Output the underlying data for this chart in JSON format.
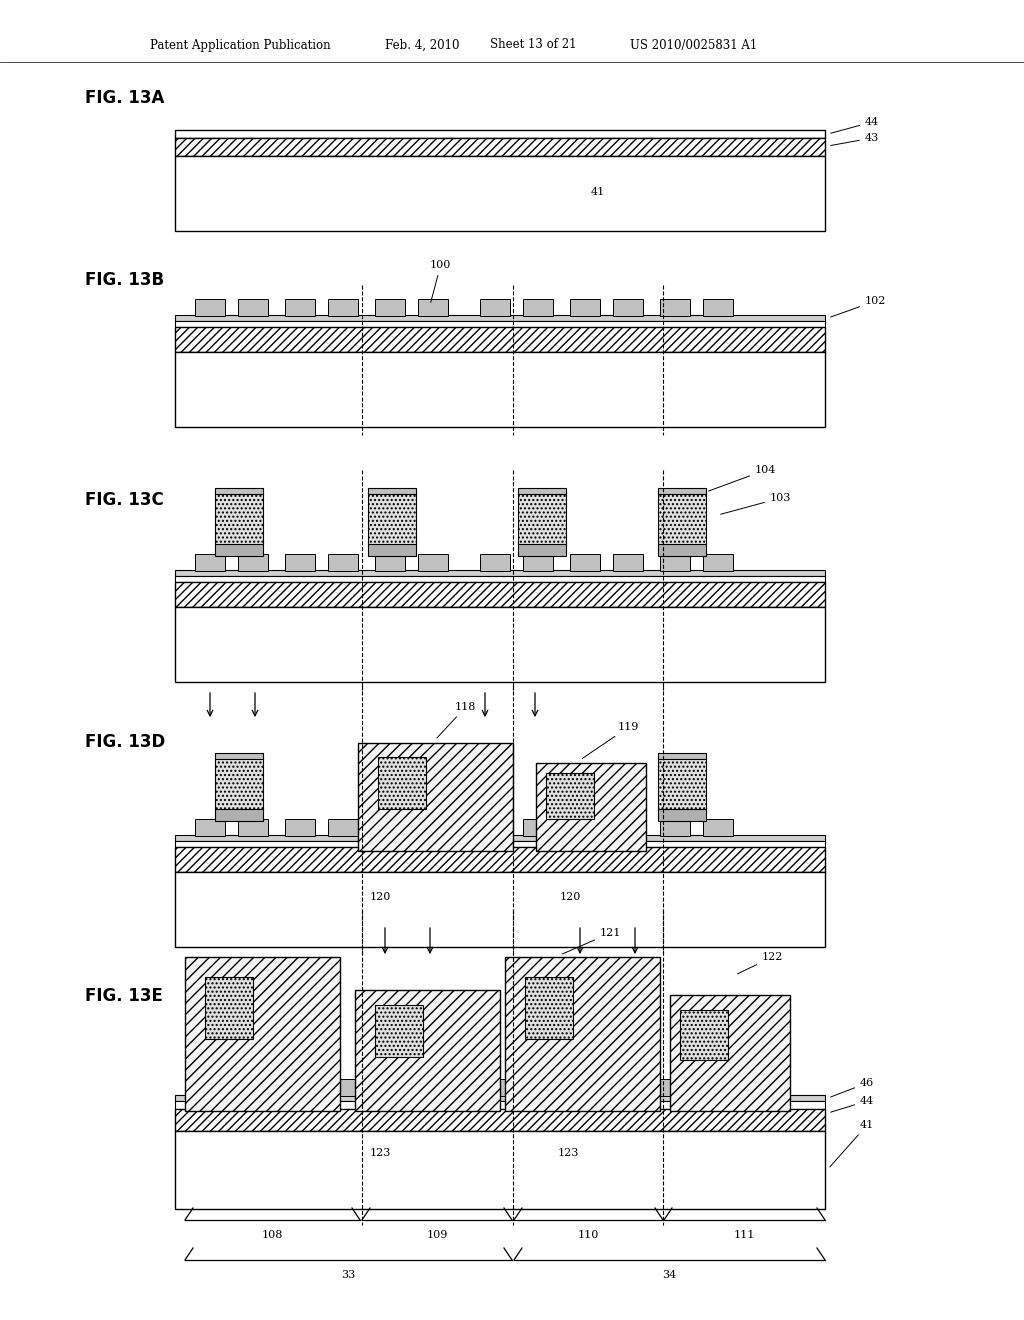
{
  "bg_color": "#ffffff",
  "header_text1": "Patent Application Publication",
  "header_text2": "Feb. 4, 2010",
  "header_text3": "Sheet 13 of 21",
  "header_text4": "US 2010/0025831 A1",
  "figures": [
    "FIG. 13A",
    "FIG. 13B",
    "FIG. 13C",
    "FIG. 13D",
    "FIG. 13E"
  ],
  "fig_label_fontsize": 12,
  "header_fontsize": 8.5,
  "label_fontsize": 8
}
